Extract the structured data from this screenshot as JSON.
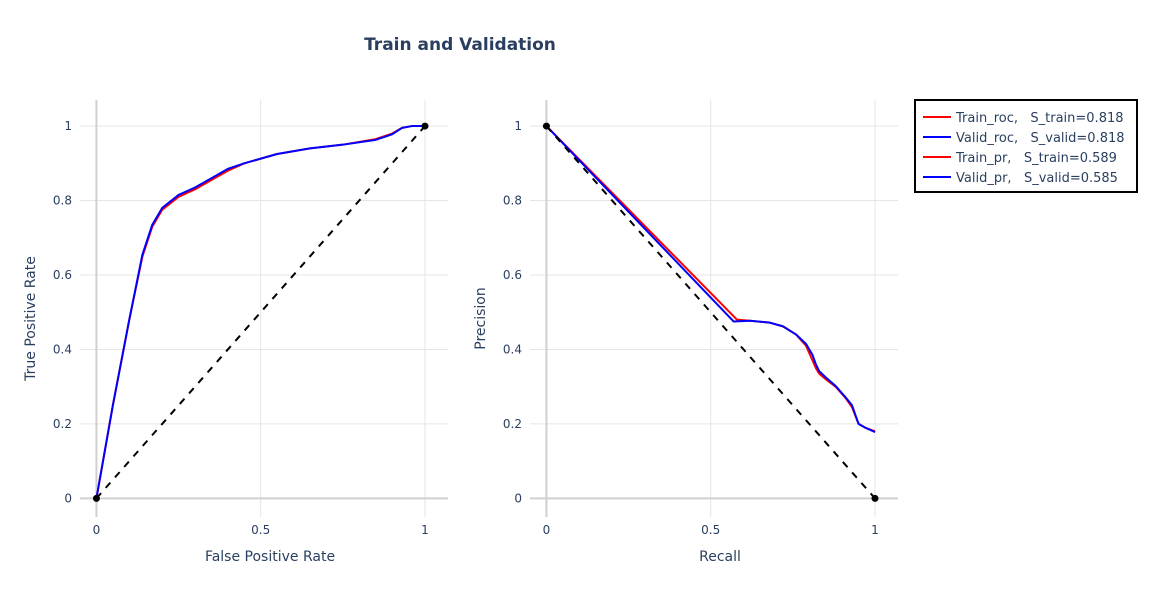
{
  "title": "Train and Validation",
  "colors": {
    "train": "#ff0000",
    "valid": "#0000ff",
    "diagonal": "#000000",
    "grid": "#e5e5e5",
    "zeroline": "#d0d0d0",
    "text": "#2a3f5f"
  },
  "legend": {
    "placement": "right",
    "items": [
      {
        "label": "Train_roc,   S_train=0.818",
        "color": "#ff0000"
      },
      {
        "label": "Valid_roc,   S_valid=0.818",
        "color": "#0000ff"
      },
      {
        "label": "Train_pr,   S_train=0.589",
        "color": "#ff0000"
      },
      {
        "label": "Valid_pr,   S_valid=0.585",
        "color": "#0000ff"
      }
    ]
  },
  "chart_data": [
    {
      "type": "line",
      "xlabel": "False Positive Rate",
      "ylabel": "True Positive Rate",
      "xlim": [
        -0.05,
        1.07
      ],
      "ylim": [
        -0.05,
        1.07
      ],
      "xticks": [
        0,
        0.5,
        1
      ],
      "xtick_labels": [
        "0",
        "0.5",
        "1"
      ],
      "yticks": [
        0,
        0.2,
        0.4,
        0.6,
        0.8,
        1
      ],
      "ytick_labels": [
        "0",
        "0.2",
        "0.4",
        "0.6",
        "0.8",
        "1"
      ],
      "grid": true,
      "series": [
        {
          "name": "Train_roc",
          "color": "#ff0000",
          "x": [
            0,
            0.05,
            0.1,
            0.14,
            0.17,
            0.2,
            0.25,
            0.3,
            0.35,
            0.4,
            0.45,
            0.55,
            0.65,
            0.75,
            0.85,
            0.9,
            0.93,
            0.96,
            1
          ],
          "y": [
            0,
            0.25,
            0.48,
            0.65,
            0.73,
            0.775,
            0.81,
            0.83,
            0.855,
            0.88,
            0.9,
            0.925,
            0.94,
            0.95,
            0.965,
            0.98,
            0.995,
            1,
            1
          ]
        },
        {
          "name": "Valid_roc",
          "color": "#0000ff",
          "x": [
            0,
            0.05,
            0.1,
            0.14,
            0.17,
            0.2,
            0.25,
            0.3,
            0.35,
            0.4,
            0.45,
            0.55,
            0.65,
            0.75,
            0.85,
            0.9,
            0.93,
            0.96,
            1
          ],
          "y": [
            0,
            0.25,
            0.48,
            0.655,
            0.735,
            0.78,
            0.815,
            0.835,
            0.86,
            0.885,
            0.9,
            0.925,
            0.94,
            0.95,
            0.963,
            0.978,
            0.995,
            1,
            1
          ]
        },
        {
          "name": "",
          "color": "#000000",
          "dash": true,
          "markers": true,
          "x": [
            0,
            1
          ],
          "y": [
            0,
            1
          ]
        }
      ]
    },
    {
      "type": "line",
      "xlabel": "Recall",
      "ylabel": "Precision",
      "xlim": [
        -0.05,
        1.07
      ],
      "ylim": [
        -0.05,
        1.07
      ],
      "xticks": [
        0,
        0.5,
        1
      ],
      "xtick_labels": [
        "0",
        "0.5",
        "1"
      ],
      "yticks": [
        0,
        0.2,
        0.4,
        0.6,
        0.8,
        1
      ],
      "ytick_labels": [
        "0",
        "0.2",
        "0.4",
        "0.6",
        "0.8",
        "1"
      ],
      "grid": true,
      "series": [
        {
          "name": "Train_pr",
          "color": "#ff0000",
          "x": [
            0,
            0.58,
            0.62,
            0.68,
            0.72,
            0.76,
            0.79,
            0.81,
            0.82,
            0.83,
            0.85,
            0.88,
            0.91,
            0.93,
            0.95,
            0.97,
            1
          ],
          "y": [
            1,
            0.48,
            0.477,
            0.472,
            0.462,
            0.44,
            0.41,
            0.37,
            0.35,
            0.335,
            0.32,
            0.3,
            0.27,
            0.245,
            0.2,
            0.19,
            0.18
          ]
        },
        {
          "name": "Valid_pr",
          "color": "#0000ff",
          "x": [
            0,
            0.57,
            0.62,
            0.68,
            0.72,
            0.76,
            0.79,
            0.81,
            0.82,
            0.83,
            0.85,
            0.88,
            0.91,
            0.93,
            0.95,
            0.97,
            1
          ],
          "y": [
            1,
            0.475,
            0.477,
            0.472,
            0.462,
            0.44,
            0.415,
            0.385,
            0.36,
            0.342,
            0.325,
            0.302,
            0.272,
            0.25,
            0.2,
            0.19,
            0.178
          ]
        },
        {
          "name": "",
          "color": "#000000",
          "dash": true,
          "markers": true,
          "x": [
            0,
            1
          ],
          "y": [
            1,
            0
          ]
        }
      ]
    }
  ]
}
